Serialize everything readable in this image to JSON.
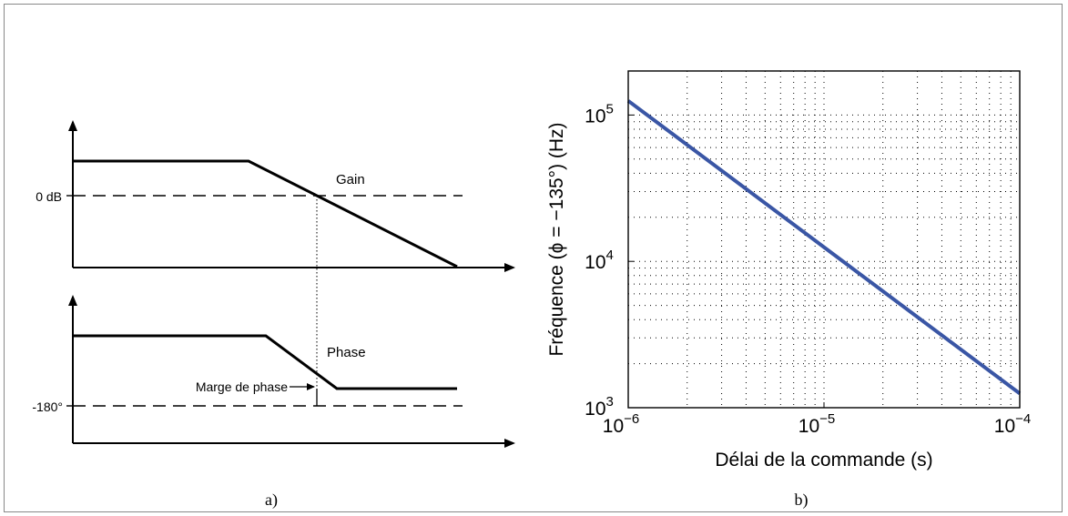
{
  "panel_a": {
    "caption": "a)",
    "gain_label": "Gain",
    "zero_db_label": "0 dB",
    "phase_label": "Phase",
    "minus180_label": "-180°",
    "margin_label": "Marge de phase"
  },
  "panel_b": {
    "caption": "b)"
  },
  "chart_data": {
    "type": "line",
    "title": "",
    "xlabel": "Délai de la commande (s)",
    "ylabel": "Fréquence (ϕ = −135°) (Hz)",
    "xscale": "log",
    "yscale": "log",
    "xlim": [
      1e-06,
      0.0001
    ],
    "ylim": [
      1000,
      200000
    ],
    "grid": true,
    "x_ticks": [
      {
        "value": 1e-06,
        "base": "10",
        "exp": "−6"
      },
      {
        "value": 1e-05,
        "base": "10",
        "exp": "−5"
      },
      {
        "value": 0.0001,
        "base": "10",
        "exp": "−4"
      }
    ],
    "y_ticks": [
      {
        "value": 1000,
        "base": "10",
        "exp": "3"
      },
      {
        "value": 10000,
        "base": "10",
        "exp": "4"
      },
      {
        "value": 100000,
        "base": "10",
        "exp": "5"
      }
    ],
    "series": [
      {
        "color": "#3a56a5",
        "x": [
          1e-06,
          1e-05,
          0.0001
        ],
        "y": [
          125000,
          12500,
          1250
        ]
      }
    ]
  }
}
